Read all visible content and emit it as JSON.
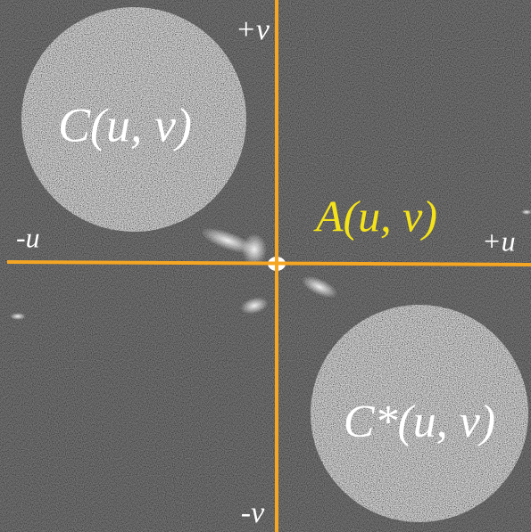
{
  "axes": {
    "plus_v": "+v",
    "minus_v": "-v",
    "plus_u": "+u",
    "minus_u": "-u"
  },
  "labels": {
    "correlation": "C(u, v)",
    "conjugate": "C*(u, v)",
    "autocorrelation": "A(u, v)"
  }
}
